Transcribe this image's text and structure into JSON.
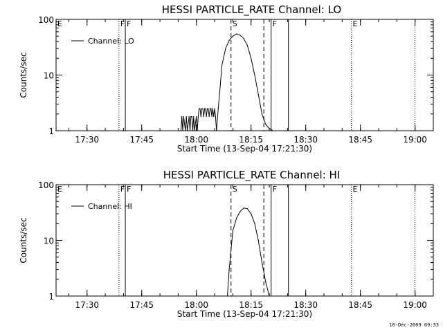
{
  "stamp": "10-Dec-2009 09:33",
  "chart_data": [
    {
      "type": "line",
      "title": "HESSI PARTICLE_RATE Channel: LO",
      "xlabel": "Start Time (13-Sep-04 17:21:30)",
      "ylabel": "Counts/sec",
      "y_scale": "log",
      "ylim": [
        1,
        100
      ],
      "xlim": [
        "17:21:30",
        "19:05:00"
      ],
      "x_ticks": [
        "17:30",
        "17:45",
        "18:00",
        "18:15",
        "18:30",
        "18:45",
        "19:00"
      ],
      "y_ticks": [
        "1",
        "10",
        "100"
      ],
      "legend": "top-left",
      "grid": false,
      "series": [
        {
          "name": "Channel: LO",
          "x": [
            "17:55:45",
            "17:56:00",
            "17:56:15",
            "17:56:30",
            "17:57:00",
            "17:57:15",
            "17:57:30",
            "17:58:00",
            "17:58:15",
            "17:58:30",
            "17:58:45",
            "17:59:00",
            "17:59:15",
            "17:59:30",
            "18:00:00",
            "18:00:15",
            "18:00:30",
            "18:00:45",
            "18:01:00",
            "18:01:15",
            "18:01:30",
            "18:01:45",
            "18:02:00",
            "18:02:15",
            "18:02:30",
            "18:02:45",
            "18:03:00",
            "18:03:15",
            "18:03:30",
            "18:03:45",
            "18:04:00",
            "18:04:15",
            "18:04:30",
            "18:04:45",
            "18:05:00",
            "18:05:15",
            "18:05:30",
            "18:06:00",
            "18:06:30",
            "18:07:00",
            "18:08:00",
            "18:09:00",
            "18:10:00",
            "18:11:00",
            "18:12:00",
            "18:13:00",
            "18:14:00",
            "18:15:00",
            "18:16:00",
            "18:17:00",
            "18:18:00",
            "18:19:00",
            "18:20:00",
            "18:20:30",
            "18:21:00"
          ],
          "y": [
            1,
            1.8,
            1,
            1.8,
            1,
            1.8,
            1,
            1.8,
            1,
            1.8,
            1.8,
            1,
            1.8,
            1,
            1.8,
            1,
            1.8,
            2.5,
            2.5,
            1.8,
            2.5,
            2.5,
            1.8,
            2.5,
            2.5,
            1.8,
            2.5,
            2.5,
            1.8,
            2.5,
            2.5,
            1.8,
            2.5,
            1.8,
            2.5,
            1.8,
            1,
            2.5,
            6,
            15,
            30,
            42,
            50,
            55,
            52,
            45,
            34,
            20,
            10,
            4.5,
            2,
            1.3,
            1.1,
            1.05,
            1
          ]
        }
      ],
      "markers": [
        {
          "label": "E",
          "time": "17:21:30",
          "style": "dotted"
        },
        {
          "label": "F",
          "time": "17:38:45",
          "style": "dotted"
        },
        {
          "label": "F",
          "time": "17:40:30",
          "style": "solid"
        },
        {
          "label": "S",
          "time": "18:09:30",
          "style": "dashed"
        },
        {
          "label": "",
          "time": "18:18:30",
          "style": "dashed"
        },
        {
          "label": "F",
          "time": "18:20:30",
          "style": "solid"
        },
        {
          "label": "",
          "time": "18:25:15",
          "style": "solid"
        },
        {
          "label": "E",
          "time": "18:42:30",
          "style": "dotted"
        },
        {
          "label": "",
          "time": "19:00:00",
          "style": "dotted"
        }
      ]
    },
    {
      "type": "line",
      "title": "HESSI PARTICLE_RATE Channel: HI",
      "xlabel": "Start Time (13-Sep-04 17:21:30)",
      "ylabel": "Counts/sec",
      "y_scale": "log",
      "ylim": [
        1,
        100
      ],
      "xlim": [
        "17:21:30",
        "19:05:00"
      ],
      "x_ticks": [
        "17:30",
        "17:45",
        "18:00",
        "18:15",
        "18:30",
        "18:45",
        "19:00"
      ],
      "y_ticks": [
        "1",
        "10",
        "100"
      ],
      "legend": "top-left",
      "grid": false,
      "series": [
        {
          "name": "Channel: HI",
          "x": [
            "18:08:30",
            "18:09:00",
            "18:10:00",
            "18:11:00",
            "18:12:00",
            "18:13:00",
            "18:14:00",
            "18:15:00",
            "18:16:00",
            "18:17:00",
            "18:18:00",
            "18:19:00",
            "18:20:00"
          ],
          "y": [
            1,
            3,
            15,
            25,
            33,
            38,
            37,
            30,
            20,
            10,
            4,
            1.8,
            1
          ]
        }
      ],
      "markers": [
        {
          "label": "E",
          "time": "17:21:30",
          "style": "dotted"
        },
        {
          "label": "F",
          "time": "17:38:45",
          "style": "dotted"
        },
        {
          "label": "F",
          "time": "17:40:30",
          "style": "solid"
        },
        {
          "label": "S",
          "time": "18:09:30",
          "style": "dashed"
        },
        {
          "label": "",
          "time": "18:18:30",
          "style": "dashed"
        },
        {
          "label": "F",
          "time": "18:20:30",
          "style": "solid"
        },
        {
          "label": "",
          "time": "18:25:15",
          "style": "solid"
        },
        {
          "label": "E",
          "time": "18:42:30",
          "style": "dotted"
        },
        {
          "label": "",
          "time": "19:00:00",
          "style": "dotted"
        }
      ]
    }
  ]
}
